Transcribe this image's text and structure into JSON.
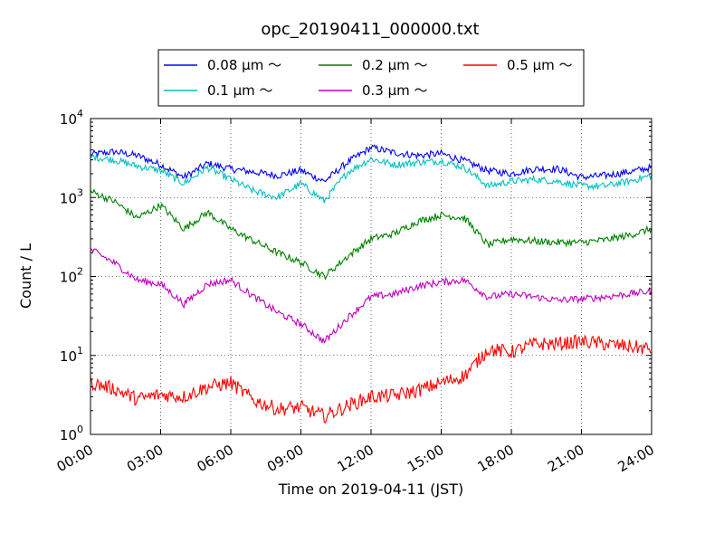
{
  "chart_data": {
    "type": "line",
    "title": "opc_20190411_000000.txt",
    "xlabel": "Time on 2019-04-11 (JST)",
    "ylabel": "Count / L",
    "x_ticks": [
      "00:00",
      "03:00",
      "06:00",
      "09:00",
      "12:00",
      "15:00",
      "18:00",
      "21:00",
      "24:00"
    ],
    "y_ticks": [
      {
        "value": 1,
        "base": "10",
        "exp": "0"
      },
      {
        "value": 10,
        "base": "10",
        "exp": "1"
      },
      {
        "value": 100,
        "base": "10",
        "exp": "2"
      },
      {
        "value": 1000,
        "base": "10",
        "exp": "3"
      },
      {
        "value": 10000,
        "base": "10",
        "exp": "4"
      }
    ],
    "xlim": [
      0,
      24
    ],
    "ylim": [
      1,
      10000
    ],
    "y_scale": "log",
    "grid": true,
    "legend_position": "top",
    "x": [
      0,
      1,
      2,
      3,
      4,
      5,
      6,
      7,
      8,
      9,
      10,
      11,
      12,
      13,
      14,
      15,
      16,
      17,
      18,
      19,
      20,
      21,
      22,
      23,
      24
    ],
    "series": [
      {
        "name": "0.08 μm ～",
        "color": "#0000ff",
        "values": [
          3500,
          3800,
          3400,
          2600,
          1800,
          2700,
          2300,
          2100,
          1900,
          2200,
          1600,
          2800,
          4300,
          3700,
          3400,
          3600,
          2900,
          2200,
          2000,
          2300,
          2300,
          1800,
          1900,
          2100,
          2400
        ]
      },
      {
        "name": "0.1 μm ～",
        "color": "#00bfbf",
        "values": [
          3300,
          3000,
          2500,
          2200,
          1500,
          2400,
          1700,
          1200,
          1000,
          1500,
          900,
          2100,
          3100,
          2600,
          2800,
          2900,
          2400,
          1400,
          1600,
          1700,
          1600,
          1400,
          1400,
          1600,
          1900
        ]
      },
      {
        "name": "0.2 μm ～",
        "color": "#008000",
        "values": [
          1200,
          900,
          550,
          800,
          400,
          650,
          400,
          280,
          200,
          150,
          100,
          180,
          300,
          350,
          500,
          600,
          550,
          250,
          300,
          280,
          270,
          270,
          290,
          330,
          400
        ]
      },
      {
        "name": "0.3 μm ～",
        "color": "#bf00bf",
        "values": [
          220,
          150,
          90,
          80,
          45,
          80,
          90,
          55,
          35,
          25,
          15,
          30,
          55,
          60,
          75,
          85,
          90,
          55,
          60,
          55,
          50,
          52,
          55,
          60,
          65
        ]
      },
      {
        "name": "0.5 μm ～",
        "color": "#ff0000",
        "values": [
          4.5,
          3.8,
          2.8,
          3.2,
          3.0,
          4.0,
          4.5,
          2.7,
          2.1,
          2.2,
          1.7,
          2.3,
          3.0,
          3.1,
          3.6,
          4.5,
          5.5,
          12,
          11,
          14,
          14,
          15,
          14,
          13,
          12
        ]
      }
    ]
  }
}
